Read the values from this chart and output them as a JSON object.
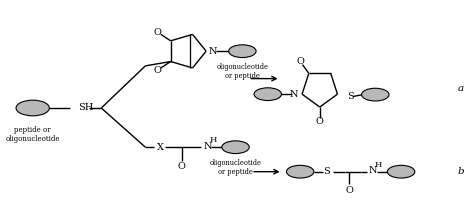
{
  "background_color": "#ffffff",
  "figure_width": 4.74,
  "figure_height": 2.16,
  "dpi": 100,
  "ellipse_color_face": "#b8b8b8",
  "ellipse_color_edge": "#000000",
  "line_color": "#000000",
  "text_color": "#000000",
  "label_a": "a",
  "label_b": "b",
  "text_oligo1": "oligonucleotide\nor peptide",
  "text_oligo2": "oligonucleotide\nor peptide",
  "text_peptide": "peptide or\noligonucleotide"
}
